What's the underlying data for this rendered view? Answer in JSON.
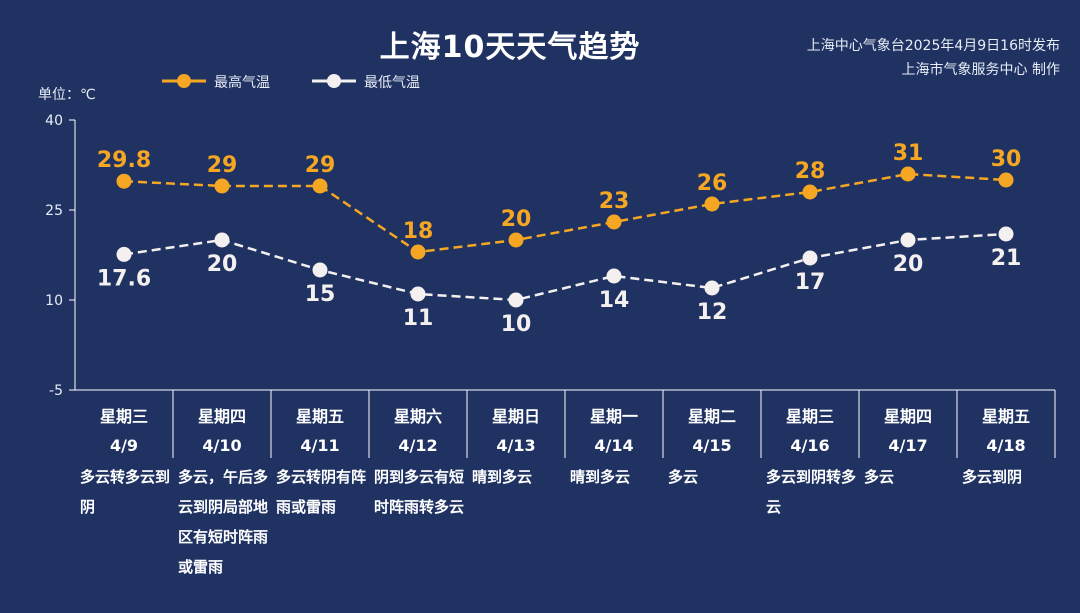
{
  "header": {
    "title": "上海10天天气趋势",
    "source_line1": "上海中心气象台2025年4月9日16时发布",
    "source_line2": "上海市气象服务中心 制作",
    "unit": "单位：℃"
  },
  "colors": {
    "background": "#1f3262",
    "high": "#f5a623",
    "low": "#f4f0f0",
    "axis": "#ffffff"
  },
  "chart_data": {
    "type": "line",
    "ylim": [
      -5,
      40
    ],
    "yticks": [
      "-5",
      "10",
      "25",
      "40"
    ],
    "legend_position": "top-left",
    "grid": false,
    "categories": [
      {
        "weekday": "星期三",
        "date": "4/9",
        "desc": "多云转多云到阴"
      },
      {
        "weekday": "星期四",
        "date": "4/10",
        "desc": "多云，午后多云到阴局部地区有短时阵雨或雷雨"
      },
      {
        "weekday": "星期五",
        "date": "4/11",
        "desc": "多云转阴有阵雨或雷雨"
      },
      {
        "weekday": "星期六",
        "date": "4/12",
        "desc": "阴到多云有短时阵雨转多云"
      },
      {
        "weekday": "星期日",
        "date": "4/13",
        "desc": "晴到多云"
      },
      {
        "weekday": "星期一",
        "date": "4/14",
        "desc": "晴到多云"
      },
      {
        "weekday": "星期二",
        "date": "4/15",
        "desc": "多云"
      },
      {
        "weekday": "星期三",
        "date": "4/16",
        "desc": "多云到阴转多云"
      },
      {
        "weekday": "星期四",
        "date": "4/17",
        "desc": "多云"
      },
      {
        "weekday": "星期五",
        "date": "4/18",
        "desc": "多云到阴"
      }
    ],
    "series": [
      {
        "name": "最高气温",
        "key": "high",
        "values": [
          29.8,
          29,
          29,
          18,
          20,
          23,
          26,
          28,
          31,
          30
        ],
        "labels": [
          "29.8",
          "29",
          "29",
          "18",
          "20",
          "23",
          "26",
          "28",
          "31",
          "30"
        ]
      },
      {
        "name": "最低气温",
        "key": "low",
        "values": [
          17.6,
          20,
          15,
          11,
          10,
          14,
          12,
          17,
          20,
          21
        ],
        "labels": [
          "17.6",
          "20",
          "15",
          "11",
          "10",
          "14",
          "12",
          "17",
          "20",
          "21"
        ]
      }
    ]
  }
}
